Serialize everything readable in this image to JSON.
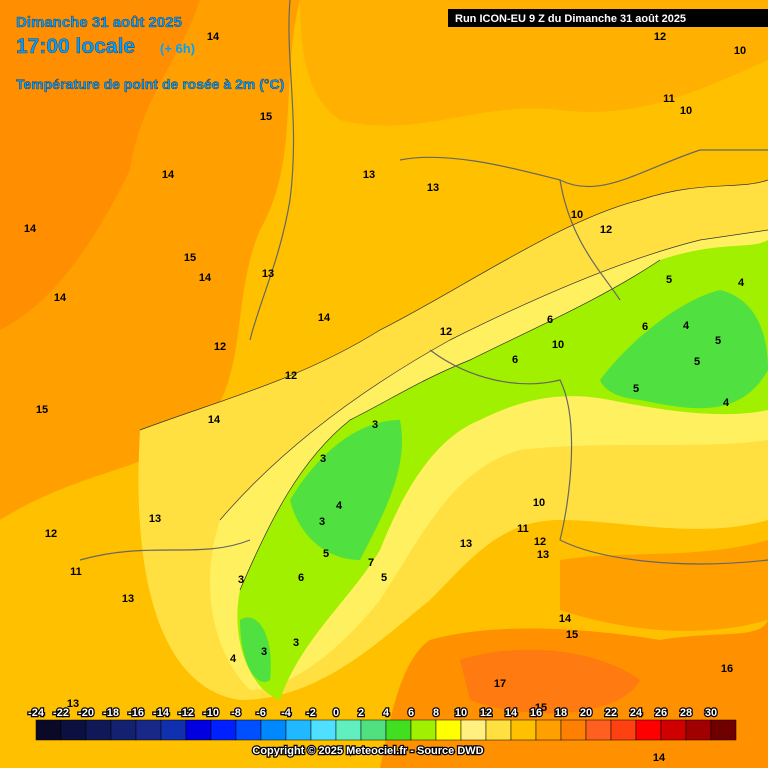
{
  "header": {
    "date": "Dimanche 31 août 2025",
    "time": "17:00 locale",
    "lead": "(+ 6h)",
    "parameter": "Température de point de rosée à 2m (°C)",
    "run": "Run ICON-EU 9 Z du Dimanche 31 août 2025"
  },
  "contour_labels": [
    14,
    10,
    12,
    15,
    11,
    10,
    14,
    13,
    13,
    14,
    10,
    12,
    15,
    14,
    13,
    14,
    5,
    4,
    14,
    12,
    6,
    6,
    4,
    12,
    10,
    6,
    5,
    12,
    5,
    15,
    14,
    5,
    4,
    3,
    3,
    10,
    13,
    4,
    3,
    11,
    12,
    12,
    13,
    13,
    5,
    7,
    11,
    6,
    3,
    5,
    13,
    14,
    15,
    3,
    3,
    4,
    16,
    17,
    13,
    15,
    14
  ],
  "colorbar": {
    "values": [
      -24,
      -22,
      -20,
      -18,
      -16,
      -14,
      -12,
      -10,
      -8,
      -6,
      -4,
      -2,
      0,
      2,
      4,
      6,
      8,
      10,
      12,
      14,
      16,
      18,
      20,
      22,
      24,
      26,
      28,
      30
    ],
    "colors": [
      "#0a0a28",
      "#0c1040",
      "#101858",
      "#142070",
      "#182888",
      "#1030b0",
      "#0000e0",
      "#0020ff",
      "#0050ff",
      "#0088ff",
      "#20b8ff",
      "#50e0ff",
      "#60f0c0",
      "#50e080",
      "#40e020",
      "#a0f000",
      "#ffff00",
      "#fff080",
      "#ffe040",
      "#ffc000",
      "#ffa000",
      "#ff8000",
      "#ff6020",
      "#ff4010",
      "#ff0000",
      "#d00000",
      "#a00000",
      "#700000"
    ]
  },
  "footer": {
    "copyright": "Copyright © 2025 Meteociel.fr - Source DWD"
  }
}
